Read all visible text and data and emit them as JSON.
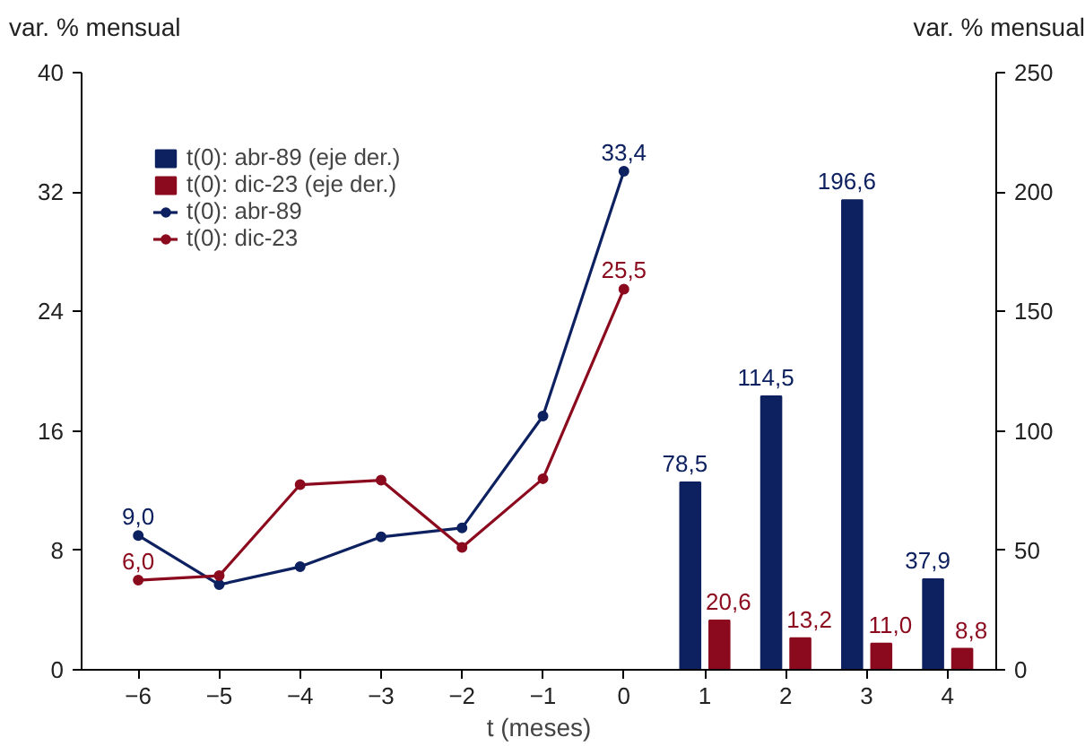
{
  "chart_data": {
    "type": "bar",
    "ylabel": "var. % mensual",
    "y2label": "var. % mensual",
    "xlabel": "t (meses)",
    "xlim": [
      -6.7,
      4.6
    ],
    "xticks": [
      -6,
      -5,
      -4,
      -3,
      -2,
      -1,
      0,
      1,
      2,
      3,
      4
    ],
    "ylim": [
      0,
      40
    ],
    "yticks": [
      0,
      8,
      16,
      24,
      32,
      40
    ],
    "y2lim": [
      0,
      250
    ],
    "y2ticks": [
      0,
      50,
      100,
      150,
      200,
      250
    ],
    "legend": "top left",
    "grid": false,
    "series": [
      {
        "name": "t(0): abr-89 (eje der.)",
        "axis": "y2",
        "color": "#0d2060",
        "x": [
          1,
          2,
          3,
          4
        ],
        "values": [
          78.5,
          114.5,
          196.6,
          37.9
        ],
        "value_labels": [
          "78,5",
          "114,5",
          "196,6",
          "37,9"
        ]
      },
      {
        "name": "t(0): dic-23 (eje der.)",
        "axis": "y2",
        "color": "#8b0a1e",
        "x": [
          1,
          2,
          3,
          4
        ],
        "values": [
          20.6,
          13.2,
          11.0,
          8.8
        ],
        "value_labels": [
          "20,6",
          "13,2",
          "11,0",
          "8,8"
        ]
      },
      {
        "name": "t(0): abr-89",
        "type": "line",
        "marker": "circle",
        "color": "#0d2060",
        "x": [
          -6,
          -5,
          -4,
          -3,
          -2,
          -1,
          0
        ],
        "values": [
          9.0,
          5.7,
          6.9,
          8.9,
          9.5,
          17.0,
          33.4
        ],
        "value_labels": [
          "9,0",
          null,
          null,
          null,
          null,
          null,
          "33,4"
        ]
      },
      {
        "name": "t(0): dic-23",
        "type": "line",
        "marker": "circle",
        "color": "#8b0a1e",
        "x": [
          -6,
          -5,
          -4,
          -3,
          -2,
          -1,
          0
        ],
        "values": [
          6.0,
          6.3,
          12.4,
          12.7,
          8.2,
          12.8,
          25.5
        ],
        "value_labels": [
          "6,0",
          null,
          null,
          null,
          null,
          null,
          "25,5"
        ]
      }
    ]
  }
}
